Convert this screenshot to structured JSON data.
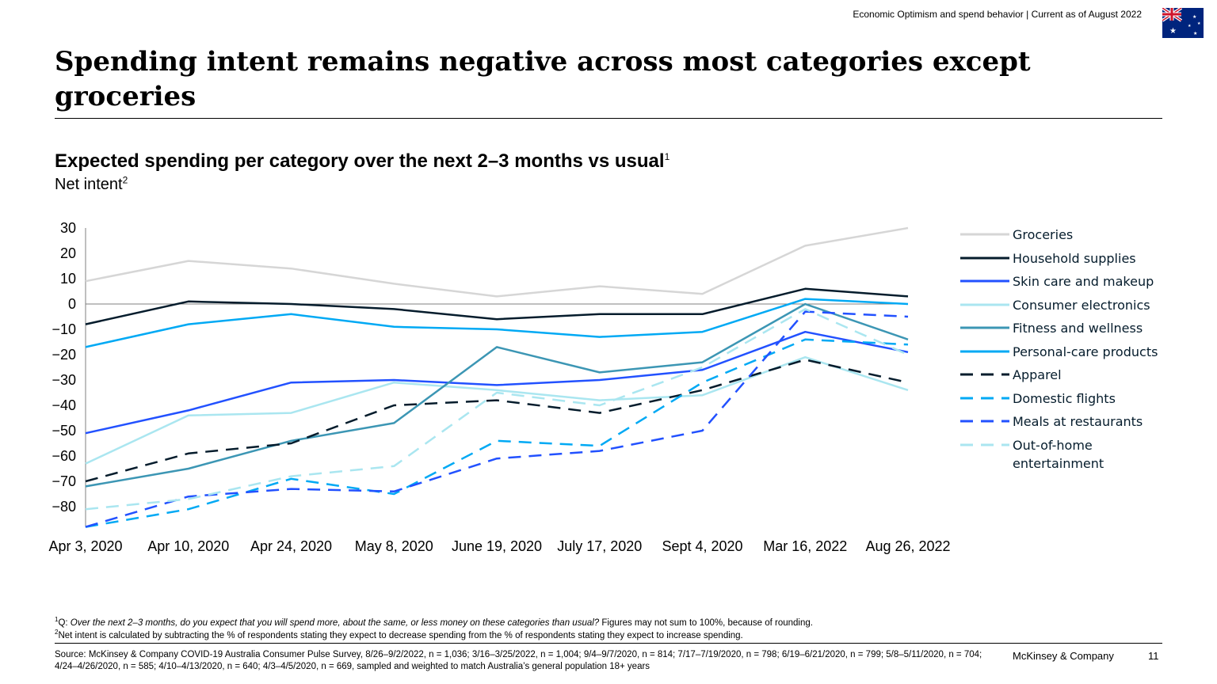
{
  "header_note": "Economic Optimism and spend behavior | Current as of August 2022",
  "flag_icon": "australia-flag-icon",
  "title": "Spending intent remains negative across most categories except groceries",
  "subtitle": "Expected spending per category over the next 2–3 months vs usual",
  "subtitle_sup": "1",
  "subhead": "Net intent",
  "subhead_sup": "2",
  "footnote_1_sup": "1",
  "footnote_1_prefix": "Q: ",
  "footnote_1_question": "Over the next 2–3 months, do you expect that you will spend more, about the same, or less money on these categories than usual?",
  "footnote_1_rest": " Figures may not sum to 100%, because of rounding.",
  "footnote_2_sup": "2",
  "footnote_2_text": "Net intent is calculated by subtracting the % of respondents stating they expect to decrease spending from the % of respondents stating they expect to increase spending.",
  "source": "Source: McKinsey & Company COVID-19 Australia Consumer Pulse Survey, 8/26–9/2/2022, n = 1,036; 3/16–3/25/2022, n = 1,004; 9/4–9/7/2020, n = 814; 7/17–7/19/2020, n = 798; 6/19–6/21/2020, n = 799; 5/8–5/11/2020, n = 704; 4/24–4/26/2020, n = 585; 4/10–4/13/2020, n = 640; 4/3–4/5/2020, n = 669, sampled and weighted to match Australia’s general population 18+ years",
  "brand": "McKinsey & Company",
  "page_number": "11",
  "chart_data": {
    "type": "line",
    "title": "Expected spending per category over the next 2–3 months vs usual",
    "ylabel": "Net intent",
    "xlabel": "",
    "ylim": [
      -88,
      30
    ],
    "y_ticks": [
      30,
      20,
      10,
      0,
      -10,
      -20,
      -30,
      -40,
      -50,
      -60,
      -70,
      -80
    ],
    "y_tick_labels": [
      "30",
      "20",
      "10",
      "0",
      "−10",
      "−20",
      "−30",
      "−40",
      "−50",
      "−60",
      "−70",
      "−80"
    ],
    "zero_line": true,
    "grid": false,
    "legend_position": "right",
    "categories": [
      "Apr 3, 2020",
      "Apr 10, 2020",
      "Apr 24, 2020",
      "May 8, 2020",
      "June 19, 2020",
      "July 17, 2020",
      "Sept 4, 2020",
      "Mar 16, 2022",
      "Aug 26, 2022"
    ],
    "series": [
      {
        "name": "Groceries",
        "style": "solid",
        "color": "#d6d6d6",
        "values": [
          9,
          17,
          14,
          8,
          3,
          7,
          4,
          23,
          30
        ]
      },
      {
        "name": "Household supplies",
        "style": "solid",
        "color": "#051c2c",
        "values": [
          -8,
          1,
          0,
          -2,
          -6,
          -4,
          -4,
          6,
          3
        ]
      },
      {
        "name": "Skin care and makeup",
        "style": "solid",
        "color": "#2251ff",
        "values": [
          -51,
          -42,
          -31,
          -30,
          -32,
          -30,
          -26,
          -11,
          -19
        ]
      },
      {
        "name": "Consumer electronics",
        "style": "solid",
        "color": "#aae6f0",
        "values": [
          -63,
          -44,
          -43,
          -31,
          -34,
          -38,
          -36,
          -21,
          -34
        ]
      },
      {
        "name": "Fitness and wellness",
        "style": "solid",
        "color": "#3c96b4",
        "values": [
          -72,
          -65,
          -54,
          -47,
          -17,
          -27,
          -23,
          0,
          -14
        ]
      },
      {
        "name": "Personal-care products",
        "style": "solid",
        "color": "#00a9f4",
        "values": [
          -17,
          -8,
          -4,
          -9,
          -10,
          -13,
          -11,
          2,
          0
        ]
      },
      {
        "name": "Apparel",
        "style": "dashed",
        "color": "#051c2c",
        "values": [
          -70,
          -59,
          -55,
          -40,
          -38,
          -43,
          -34,
          -22,
          -31
        ]
      },
      {
        "name": "Domestic flights",
        "style": "dashed",
        "color": "#00a9f4",
        "values": [
          -88,
          -81,
          -69,
          -75,
          -54,
          -56,
          -31,
          -14,
          -16
        ]
      },
      {
        "name": "Meals at restaurants",
        "style": "dashed",
        "color": "#2251ff",
        "values": [
          -88,
          -76,
          -73,
          -74,
          -61,
          -58,
          -50,
          -3,
          -5
        ]
      },
      {
        "name": "Out-of-home entertainment",
        "style": "dashed",
        "color": "#aae6f0",
        "values": [
          -81,
          -77,
          -68,
          -64,
          -35,
          -40,
          -25,
          -2,
          -20
        ]
      }
    ]
  },
  "legend_labels": [
    "Groceries",
    "Household supplies",
    "Skin care and makeup",
    "Consumer electronics",
    "Fitness and wellness",
    "Personal-care products",
    "Apparel",
    "Domestic flights",
    "Meals at restaurants",
    "Out-of-home entertainment"
  ]
}
